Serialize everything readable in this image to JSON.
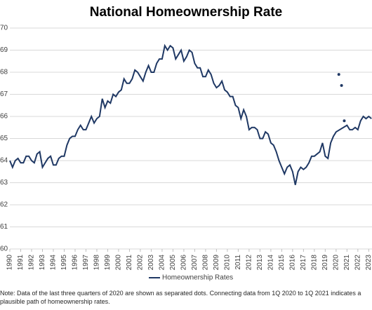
{
  "chart_data": {
    "type": "line",
    "title": "National Homeownership Rate",
    "note": "Note: Data of the last three quarters of 2020 are shown as separated dots. Connecting data from 1Q 2020  to 1Q 2021  indicates a plausible path of homeownership rates.",
    "xlim": [
      1990,
      2023.3
    ],
    "xticks": [
      1990,
      1991,
      1992,
      1993,
      1994,
      1995,
      1996,
      1997,
      1998,
      1999,
      2000,
      2001,
      2002,
      2003,
      2004,
      2005,
      2006,
      2007,
      2008,
      2009,
      2010,
      2011,
      2012,
      2013,
      2014,
      2015,
      2016,
      2017,
      2018,
      2019,
      2020,
      2021,
      2022,
      2023
    ],
    "ylim": [
      60,
      70
    ],
    "yticks": [
      60,
      61,
      62,
      63,
      64,
      65,
      66,
      67,
      68,
      69,
      70
    ],
    "grid": true,
    "series": [
      {
        "name": "Homeownership Rates",
        "color": "#1f3864",
        "markers": false,
        "x": [
          1990,
          1990.25,
          1990.5,
          1990.75,
          1991,
          1991.25,
          1991.5,
          1991.75,
          1992,
          1992.25,
          1992.5,
          1992.75,
          1993,
          1993.25,
          1993.5,
          1993.75,
          1994,
          1994.25,
          1994.5,
          1994.75,
          1995,
          1995.25,
          1995.5,
          1995.75,
          1996,
          1996.25,
          1996.5,
          1996.75,
          1997,
          1997.25,
          1997.5,
          1997.75,
          1998,
          1998.25,
          1998.5,
          1998.75,
          1999,
          1999.25,
          1999.5,
          1999.75,
          2000,
          2000.25,
          2000.5,
          2000.75,
          2001,
          2001.25,
          2001.5,
          2001.75,
          2002,
          2002.25,
          2002.5,
          2002.75,
          2003,
          2003.25,
          2003.5,
          2003.75,
          2004,
          2004.25,
          2004.5,
          2004.75,
          2005,
          2005.25,
          2005.5,
          2005.75,
          2006,
          2006.25,
          2006.5,
          2006.75,
          2007,
          2007.25,
          2007.5,
          2007.75,
          2008,
          2008.25,
          2008.5,
          2008.75,
          2009,
          2009.25,
          2009.5,
          2009.75,
          2010,
          2010.25,
          2010.5,
          2010.75,
          2011,
          2011.25,
          2011.5,
          2011.75,
          2012,
          2012.25,
          2012.5,
          2012.75,
          2013,
          2013.25,
          2013.5,
          2013.75,
          2014,
          2014.25,
          2014.5,
          2014.75,
          2015,
          2015.25,
          2015.5,
          2015.75,
          2016,
          2016.25,
          2016.5,
          2016.75,
          2017,
          2017.25,
          2017.5,
          2017.75,
          2018,
          2018.25,
          2018.5,
          2018.75,
          2019,
          2019.25,
          2019.5,
          2019.75,
          2020,
          2021,
          2021.25,
          2021.5,
          2021.75,
          2022,
          2022.25,
          2022.5,
          2022.75,
          2023,
          2023.25
        ],
        "values": [
          64.0,
          63.7,
          64.0,
          64.1,
          63.9,
          63.9,
          64.2,
          64.2,
          64.0,
          63.9,
          64.3,
          64.4,
          63.7,
          63.9,
          64.1,
          64.2,
          63.8,
          63.8,
          64.1,
          64.2,
          64.2,
          64.7,
          65.0,
          65.1,
          65.1,
          65.4,
          65.6,
          65.4,
          65.4,
          65.7,
          66.0,
          65.7,
          65.9,
          66.0,
          66.8,
          66.4,
          66.7,
          66.6,
          67.0,
          66.9,
          67.1,
          67.2,
          67.7,
          67.5,
          67.5,
          67.7,
          68.1,
          68.0,
          67.8,
          67.6,
          68.0,
          68.3,
          68.0,
          68.0,
          68.4,
          68.6,
          68.6,
          69.2,
          69.0,
          69.2,
          69.1,
          68.6,
          68.8,
          69.0,
          68.5,
          68.7,
          69.0,
          68.9,
          68.4,
          68.2,
          68.2,
          67.8,
          67.8,
          68.1,
          67.9,
          67.5,
          67.3,
          67.4,
          67.6,
          67.2,
          67.1,
          66.9,
          66.9,
          66.5,
          66.4,
          65.9,
          66.3,
          66.0,
          65.4,
          65.5,
          65.5,
          65.4,
          65.0,
          65.0,
          65.3,
          65.2,
          64.8,
          64.7,
          64.4,
          64.0,
          63.7,
          63.4,
          63.7,
          63.8,
          63.5,
          62.9,
          63.5,
          63.7,
          63.6,
          63.7,
          63.9,
          64.2,
          64.2,
          64.3,
          64.4,
          64.8,
          64.2,
          64.1,
          64.8,
          65.1,
          65.3,
          65.6,
          65.4,
          65.4,
          65.5,
          65.4,
          65.8,
          66.0,
          65.9,
          66.0,
          65.9
        ]
      },
      {
        "color": "#1f3864",
        "markers": true,
        "x": [
          2020.25,
          2020.5,
          2020.75
        ],
        "values": [
          67.9,
          67.4,
          65.8
        ]
      }
    ]
  }
}
